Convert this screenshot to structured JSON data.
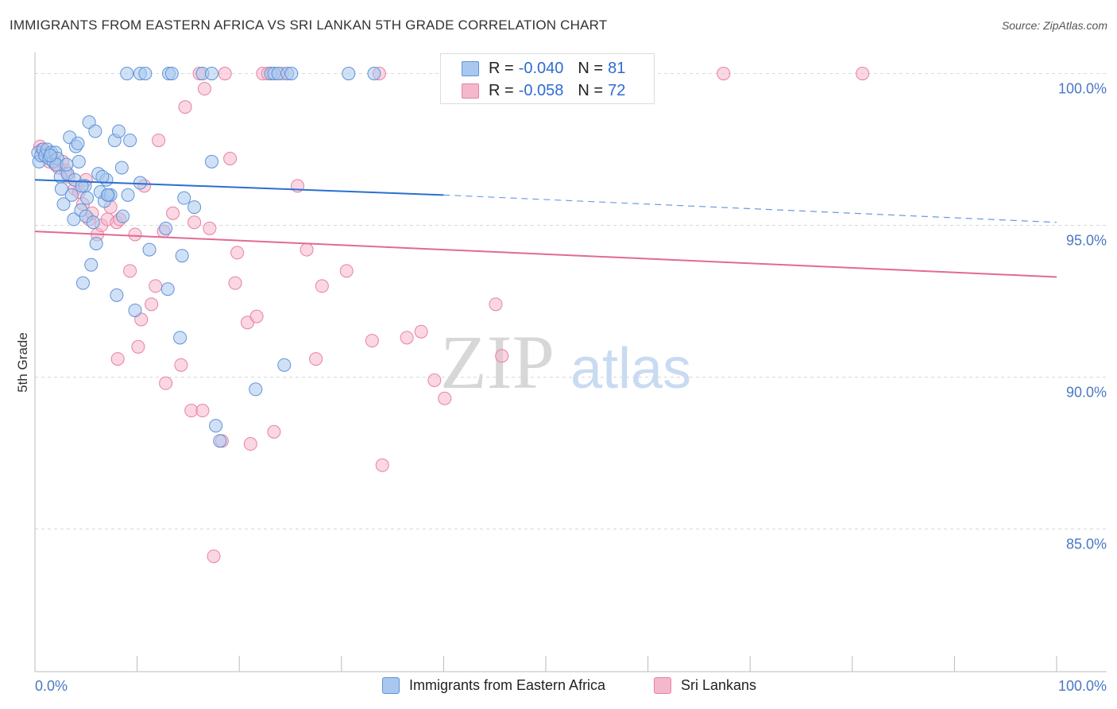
{
  "title": "IMMIGRANTS FROM EASTERN AFRICA VS SRI LANKAN 5TH GRADE CORRELATION CHART",
  "source": "Source: ZipAtlas.com",
  "legend_top": {
    "rows": [
      {
        "r_label": "R = ",
        "r_value": "-0.040",
        "n_label": "N = ",
        "n_value": "81"
      },
      {
        "r_label": "R = ",
        "r_value": "-0.058",
        "n_label": "N = ",
        "n_value": "72"
      }
    ]
  },
  "legend_bottom": [
    "Immigrants from Eastern Africa",
    "Sri Lankans"
  ],
  "watermark": {
    "zip": "ZIP",
    "atlas": "atlas"
  },
  "colors": {
    "blue_fill": "#a9c8ef",
    "blue_stroke": "#5f93d8",
    "blue_line": "#2a6fd1",
    "pink_fill": "#f5b7cb",
    "pink_stroke": "#e880a4",
    "pink_line": "#e06a96",
    "grid": "#d9d9d9",
    "tick_text": "#4a78c4"
  },
  "chart_data": {
    "type": "scatter",
    "title": "IMMIGRANTS FROM EASTERN AFRICA VS SRI LANKAN 5TH GRADE CORRELATION CHART",
    "xlabel": "",
    "ylabel": "5th Grade",
    "xlim": [
      0,
      100
    ],
    "ylim": [
      80.3,
      100.8
    ],
    "x_tick_labels": [
      "0.0%",
      "100.0%"
    ],
    "y_ticks": [
      100,
      95,
      90,
      85
    ],
    "y_tick_labels": [
      "100.0%",
      "95.0%",
      "90.0%",
      "85.0%"
    ],
    "grid": true,
    "series": [
      {
        "name": "Immigrants from Eastern Africa",
        "r": -0.04,
        "n": 81,
        "trend": {
          "x0": 0,
          "y0": 96.5,
          "x1": 40,
          "y1": 96.0,
          "dash_to_x": 100,
          "dash_to_y": 95.1
        },
        "points": [
          [
            0.3,
            97.4
          ],
          [
            0.4,
            97.1
          ],
          [
            0.6,
            97.3
          ],
          [
            0.8,
            97.5
          ],
          [
            1.0,
            97.3
          ],
          [
            1.2,
            97.5
          ],
          [
            1.4,
            97.2
          ],
          [
            1.6,
            97.4
          ],
          [
            1.8,
            97.1
          ],
          [
            2.0,
            97.4
          ],
          [
            2.2,
            97.2
          ],
          [
            2.5,
            96.6
          ],
          [
            2.6,
            96.2
          ],
          [
            2.8,
            95.7
          ],
          [
            3.2,
            96.7
          ],
          [
            3.4,
            97.9
          ],
          [
            3.6,
            96.0
          ],
          [
            3.8,
            95.2
          ],
          [
            3.9,
            96.5
          ],
          [
            4.0,
            97.6
          ],
          [
            4.2,
            97.7
          ],
          [
            4.3,
            97.1
          ],
          [
            4.5,
            95.5
          ],
          [
            4.7,
            93.1
          ],
          [
            4.9,
            96.3
          ],
          [
            5.0,
            95.3
          ],
          [
            5.3,
            98.4
          ],
          [
            5.5,
            93.7
          ],
          [
            5.7,
            95.1
          ],
          [
            5.9,
            98.1
          ],
          [
            6.0,
            94.4
          ],
          [
            6.2,
            96.7
          ],
          [
            6.4,
            96.1
          ],
          [
            6.8,
            95.8
          ],
          [
            7.0,
            96.5
          ],
          [
            7.2,
            96.0
          ],
          [
            7.4,
            96.0
          ],
          [
            7.8,
            97.8
          ],
          [
            8.0,
            92.7
          ],
          [
            8.2,
            98.1
          ],
          [
            8.5,
            96.9
          ],
          [
            8.6,
            95.3
          ],
          [
            9.1,
            96.0
          ],
          [
            9.3,
            97.8
          ],
          [
            9.8,
            92.2
          ],
          [
            10.3,
            96.4
          ],
          [
            11.2,
            94.2
          ],
          [
            12.8,
            94.9
          ],
          [
            13.0,
            92.9
          ],
          [
            14.2,
            91.3
          ],
          [
            14.4,
            94.0
          ],
          [
            14.6,
            95.9
          ],
          [
            15.6,
            95.6
          ],
          [
            17.3,
            97.1
          ],
          [
            17.7,
            88.4
          ],
          [
            18.1,
            87.9
          ],
          [
            21.6,
            89.6
          ],
          [
            24.4,
            90.4
          ],
          [
            9.0,
            100.0
          ],
          [
            10.3,
            100.0
          ],
          [
            10.8,
            100.0
          ],
          [
            13.1,
            100.0
          ],
          [
            13.4,
            100.0
          ],
          [
            16.4,
            100.0
          ],
          [
            17.3,
            100.0
          ],
          [
            23.1,
            100.0
          ],
          [
            23.4,
            100.0
          ],
          [
            23.8,
            100.0
          ],
          [
            24.7,
            100.0
          ],
          [
            25.1,
            100.0
          ],
          [
            30.7,
            100.0
          ],
          [
            33.2,
            100.0
          ],
          [
            7.1,
            96.0
          ],
          [
            4.6,
            96.3
          ],
          [
            2.1,
            97.0
          ],
          [
            1.5,
            97.3
          ],
          [
            3.1,
            97.0
          ],
          [
            6.6,
            96.6
          ],
          [
            5.1,
            95.9
          ]
        ]
      },
      {
        "name": "Sri Lankans",
        "r": -0.058,
        "n": 72,
        "trend": {
          "x0": 0,
          "y0": 94.8,
          "x1": 100,
          "y1": 93.3
        },
        "points": [
          [
            0.5,
            97.6
          ],
          [
            0.7,
            97.5
          ],
          [
            0.9,
            97.3
          ],
          [
            1.1,
            97.4
          ],
          [
            1.4,
            97.1
          ],
          [
            1.6,
            97.3
          ],
          [
            2.0,
            97.0
          ],
          [
            2.3,
            96.9
          ],
          [
            2.7,
            97.1
          ],
          [
            3.0,
            96.8
          ],
          [
            3.3,
            96.6
          ],
          [
            3.9,
            96.2
          ],
          [
            4.3,
            96.1
          ],
          [
            4.7,
            95.7
          ],
          [
            5.0,
            96.5
          ],
          [
            5.3,
            95.2
          ],
          [
            5.6,
            95.4
          ],
          [
            6.1,
            94.7
          ],
          [
            6.5,
            95.0
          ],
          [
            7.1,
            95.2
          ],
          [
            7.4,
            95.6
          ],
          [
            8.0,
            95.1
          ],
          [
            8.3,
            95.2
          ],
          [
            8.1,
            90.6
          ],
          [
            9.3,
            93.5
          ],
          [
            9.8,
            94.7
          ],
          [
            10.1,
            91.0
          ],
          [
            10.4,
            91.9
          ],
          [
            10.7,
            96.3
          ],
          [
            11.4,
            92.4
          ],
          [
            11.8,
            93.0
          ],
          [
            12.1,
            97.8
          ],
          [
            12.6,
            94.8
          ],
          [
            12.8,
            89.8
          ],
          [
            13.5,
            95.4
          ],
          [
            14.3,
            90.4
          ],
          [
            14.7,
            98.9
          ],
          [
            15.3,
            88.9
          ],
          [
            15.6,
            95.1
          ],
          [
            16.4,
            88.9
          ],
          [
            16.6,
            99.5
          ],
          [
            17.1,
            94.9
          ],
          [
            17.5,
            84.1
          ],
          [
            18.3,
            87.9
          ],
          [
            19.1,
            97.2
          ],
          [
            19.6,
            93.1
          ],
          [
            19.8,
            94.1
          ],
          [
            20.8,
            91.8
          ],
          [
            21.1,
            87.8
          ],
          [
            21.7,
            92.0
          ],
          [
            23.4,
            88.2
          ],
          [
            25.7,
            96.3
          ],
          [
            26.6,
            94.2
          ],
          [
            27.5,
            90.6
          ],
          [
            28.1,
            93.0
          ],
          [
            30.5,
            93.5
          ],
          [
            33.0,
            91.2
          ],
          [
            34.0,
            87.1
          ],
          [
            36.4,
            91.3
          ],
          [
            37.8,
            91.5
          ],
          [
            39.1,
            89.9
          ],
          [
            40.1,
            89.3
          ],
          [
            45.1,
            92.4
          ],
          [
            45.7,
            90.7
          ],
          [
            16.1,
            100.0
          ],
          [
            18.6,
            100.0
          ],
          [
            22.3,
            100.0
          ],
          [
            22.8,
            100.0
          ],
          [
            24.2,
            100.0
          ],
          [
            33.7,
            100.0
          ],
          [
            67.4,
            100.0
          ],
          [
            81.0,
            100.0
          ]
        ]
      }
    ]
  }
}
